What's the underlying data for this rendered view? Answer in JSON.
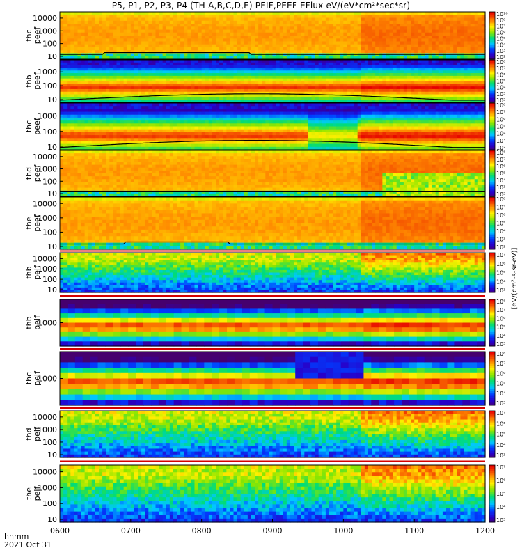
{
  "title": "P5, P1, P2, P3, P4 (TH-A,B,C,D,E) PEIF,PEEF EFlux eV/(eV*cm²*sec*sr)",
  "footer": {
    "line1": "hhmm",
    "line2": "2021 Oct 31"
  },
  "colorbar_title": "[eV/(cm²-s-sr-eV)]",
  "chart_data": {
    "type": "heatmap",
    "x_axis": {
      "range": [
        "06:00",
        "12:00"
      ],
      "tick_labels": [
        "0600",
        "0700",
        "0800",
        "0900",
        "1000",
        "1100",
        "1200"
      ]
    },
    "panels": [
      {
        "probe": "thc",
        "product": "peef",
        "yticks": [
          "10",
          "100",
          "1000",
          "10000"
        ],
        "yscale": "log",
        "cbar": [
          "10²",
          "10³",
          "10⁴",
          "10⁵",
          "10⁶",
          "10⁷",
          "10⁸",
          "10¹⁰"
        ],
        "base": 6.0,
        "variation": "flat_high",
        "line_band": "10-20"
      },
      {
        "probe": "thb",
        "product": "peef",
        "yticks": [
          "10",
          "100",
          "1000"
        ],
        "yscale": "log",
        "cbar": [
          "10²",
          "10³",
          "10⁴",
          "10⁵",
          "10⁶",
          "10⁷",
          "10⁸"
        ],
        "base": 4.5,
        "variation": "band_mid",
        "line_band": "5-10"
      },
      {
        "probe": "thc",
        "product": "peef",
        "yticks": [
          "10",
          "100",
          "1000"
        ],
        "yscale": "log",
        "cbar": [
          "10²",
          "10³",
          "10⁴",
          "10⁵",
          "10⁶",
          "10⁷",
          "10⁸"
        ],
        "base": 4.5,
        "variation": "band_low",
        "line_band": "5-10"
      },
      {
        "probe": "thd",
        "product": "peef",
        "yticks": [
          "10",
          "100",
          "1000",
          "10000"
        ],
        "yscale": "log",
        "cbar": [
          "10²",
          "10³",
          "10⁴",
          "10⁵",
          "10⁶",
          "10⁷",
          "10⁸"
        ],
        "base": 5.5,
        "variation": "flat_high",
        "line_band": "10"
      },
      {
        "probe": "the",
        "product": "peef",
        "yticks": [
          "10",
          "100",
          "1000",
          "10000"
        ],
        "yscale": "log",
        "cbar": [
          "10²",
          "10³",
          "10⁴",
          "10⁵",
          "10⁶",
          "10⁷",
          "10⁸"
        ],
        "base": 6.0,
        "variation": "flat_high",
        "line_band": "10"
      },
      {
        "probe": "thb",
        "product": "peif",
        "yticks": [
          "10",
          "100",
          "1000",
          "10000"
        ],
        "yscale": "log",
        "cbar": [
          "10³",
          "10⁴",
          "10⁵",
          "10⁶",
          "10⁷"
        ],
        "base": 3.5,
        "variation": "ion_low",
        "line_band": ""
      },
      {
        "probe": "thb",
        "product": "peif",
        "yticks": [
          "1000"
        ],
        "yscale": "log",
        "cbar": [
          "10³",
          "10⁴",
          "10⁵",
          "10⁶",
          "10⁷",
          "10⁸"
        ],
        "base": 5.0,
        "variation": "ion_band",
        "line_band": ""
      },
      {
        "probe": "thc",
        "product": "peif",
        "yticks": [
          "1000"
        ],
        "yscale": "log",
        "cbar": [
          "10³",
          "10⁴",
          "10⁵",
          "10⁶",
          "10⁷",
          "10⁸"
        ],
        "base": 5.0,
        "variation": "ion_band",
        "line_band": ""
      },
      {
        "probe": "thd",
        "product": "peif",
        "yticks": [
          "10",
          "100",
          "1000",
          "10000"
        ],
        "yscale": "log",
        "cbar": [
          "10³",
          "10⁴",
          "10⁵",
          "10⁶",
          "10⁷"
        ],
        "base": 3.5,
        "variation": "ion_low",
        "line_band": ""
      },
      {
        "probe": "the",
        "product": "peif",
        "yticks": [
          "10",
          "100",
          "1000",
          "10000"
        ],
        "yscale": "log",
        "cbar": [
          "10³",
          "10⁴",
          "10⁵",
          "10⁶",
          "10⁷"
        ],
        "base": 3.5,
        "variation": "ion_low",
        "line_band": ""
      }
    ]
  }
}
